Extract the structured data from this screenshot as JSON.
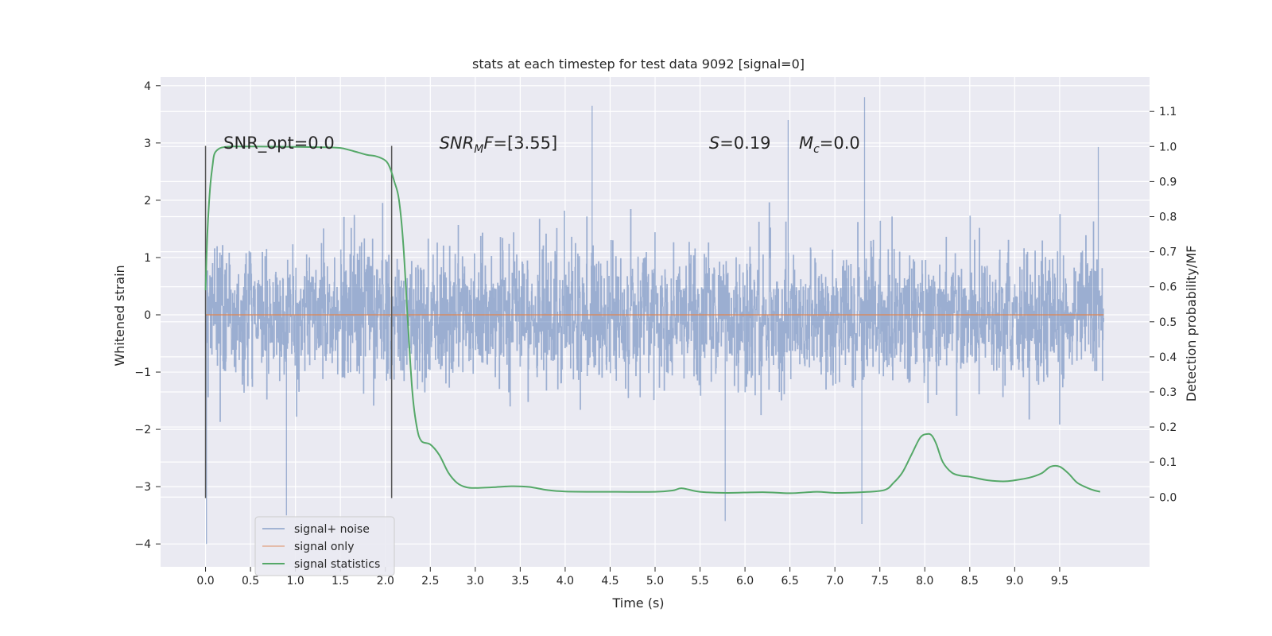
{
  "chart_data": {
    "type": "line",
    "title": "stats at each timestep for test data 9092 [signal=0]",
    "xlabel": "Time (s)",
    "ylabel_left": "Whitened strain",
    "ylabel_right": "Detection probability/MF",
    "xlim": [
      -0.5,
      10.5
    ],
    "ylim_left": [
      -4.4,
      4.15
    ],
    "ylim_right": [
      -0.199,
      1.198
    ],
    "x_ticks": [
      0.0,
      0.5,
      1.0,
      1.5,
      2.0,
      2.5,
      3.0,
      3.5,
      4.0,
      4.5,
      5.0,
      5.5,
      6.0,
      6.5,
      7.0,
      7.5,
      8.0,
      8.5,
      9.0,
      9.5
    ],
    "x_tick_labels": [
      "0.0",
      "0.5",
      "1.0",
      "1.5",
      "2.0",
      "2.5",
      "3.0",
      "3.5",
      "4.0",
      "4.5",
      "5.0",
      "5.5",
      "6.0",
      "6.5",
      "7.0",
      "7.5",
      "8.0",
      "8.5",
      "9.0",
      "9.5"
    ],
    "y_left_ticks": [
      -4,
      -3,
      -2,
      -1,
      0,
      1,
      2,
      3,
      4
    ],
    "y_left_tick_labels": [
      "−4",
      "−3",
      "−2",
      "−1",
      "0",
      "1",
      "2",
      "3",
      "4"
    ],
    "y_right_ticks": [
      0.0,
      0.1,
      0.2,
      0.3,
      0.4,
      0.5,
      0.6,
      0.7,
      0.8,
      0.9,
      1.0,
      1.1
    ],
    "y_right_tick_labels": [
      "0.0",
      "0.1",
      "0.2",
      "0.3",
      "0.4",
      "0.5",
      "0.6",
      "0.7",
      "0.8",
      "0.9",
      "1.0",
      "1.1"
    ],
    "grid": true,
    "legend_placement": "lower-left",
    "series": [
      {
        "name": "signal+ noise",
        "color": "#4c72b0",
        "axis": "left",
        "description_values": {
          "t_start": 0.0,
          "t_end": 9.99,
          "typical_envelope": [
            -1.9,
            1.8
          ],
          "max": 3.8,
          "min": -4.0,
          "notable_peaks": [
            [
              4.3,
              3.65
            ],
            [
              7.33,
              3.8
            ],
            [
              6.48,
              3.4
            ],
            [
              9.93,
              2.93
            ]
          ],
          "notable_troughs": [
            [
              0.01,
              -4.0
            ],
            [
              7.3,
              -3.65
            ],
            [
              5.78,
              -3.6
            ],
            [
              0.9,
              -3.5
            ]
          ]
        }
      },
      {
        "name": "signal only",
        "color": "#dd8452",
        "axis": "left",
        "x": [
          0.0,
          9.99
        ],
        "y": [
          0.0,
          0.0
        ]
      },
      {
        "name": "signal statistics",
        "color": "#55a868",
        "axis": "right",
        "x": [
          0.0,
          0.02,
          0.05,
          0.08,
          0.1,
          0.15,
          0.2,
          0.3,
          0.5,
          1.0,
          1.3,
          1.5,
          1.6,
          1.7,
          1.8,
          1.9,
          2.0,
          2.05,
          2.1,
          2.15,
          2.2,
          2.25,
          2.3,
          2.35,
          2.4,
          2.5,
          2.6,
          2.7,
          2.8,
          2.9,
          3.0,
          3.2,
          3.4,
          3.6,
          3.8,
          4.0,
          4.5,
          5.0,
          5.2,
          5.3,
          5.5,
          5.8,
          6.2,
          6.5,
          6.8,
          7.0,
          7.3,
          7.55,
          7.65,
          7.75,
          7.85,
          7.95,
          8.03,
          8.08,
          8.13,
          8.2,
          8.3,
          8.4,
          8.5,
          8.7,
          8.9,
          9.1,
          9.2,
          9.3,
          9.4,
          9.5,
          9.6,
          9.7,
          9.85,
          9.95
        ],
        "y": [
          0.59,
          0.75,
          0.88,
          0.95,
          0.98,
          0.994,
          0.998,
          1.0,
          1.0,
          0.999,
          0.998,
          0.996,
          0.99,
          0.983,
          0.976,
          0.972,
          0.96,
          0.94,
          0.9,
          0.85,
          0.72,
          0.5,
          0.3,
          0.2,
          0.16,
          0.15,
          0.12,
          0.07,
          0.04,
          0.028,
          0.026,
          0.028,
          0.031,
          0.029,
          0.02,
          0.016,
          0.015,
          0.015,
          0.019,
          0.025,
          0.015,
          0.012,
          0.014,
          0.011,
          0.015,
          0.012,
          0.014,
          0.02,
          0.04,
          0.07,
          0.12,
          0.17,
          0.18,
          0.175,
          0.15,
          0.1,
          0.07,
          0.061,
          0.058,
          0.048,
          0.045,
          0.052,
          0.058,
          0.068,
          0.087,
          0.087,
          0.067,
          0.04,
          0.022,
          0.015
        ]
      }
    ],
    "vertical_markers": [
      {
        "x": 0.0,
        "y_range": [
          -3.2,
          2.95
        ]
      },
      {
        "x": 2.07,
        "y_range": [
          -3.2,
          2.95
        ]
      }
    ],
    "annotations": [
      {
        "text": "SNR_opt=0.0",
        "x": 0.2,
        "y": 3.0
      },
      {
        "text": "SNR",
        "sub": "M",
        "tail": "F=[3.55]",
        "italic": true,
        "x": 2.6,
        "y": 3.0
      },
      {
        "text": "S",
        "tail": "=0.19",
        "italic": true,
        "x": 5.6,
        "y": 3.0
      },
      {
        "text": "M",
        "sub": "c",
        "tail": "=0.0",
        "italic": true,
        "x": 6.6,
        "y": 3.0
      }
    ]
  }
}
